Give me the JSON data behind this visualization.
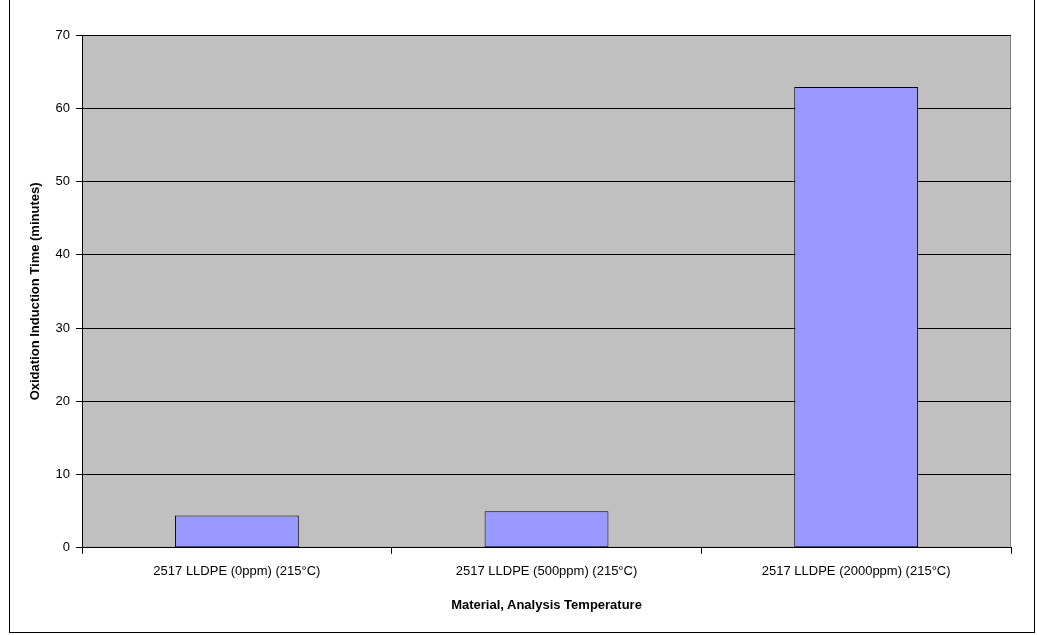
{
  "chart_data": {
    "type": "bar",
    "xlabel": "Material, Analysis Temperature",
    "ylabel": "Oxidation Induction Time (minutes)",
    "categories": [
      "2517 LLDPE (0ppm) (215°C)",
      "2517 LLDPE (500ppm) (215°C)",
      "2517 LLDPE (2000ppm) (215°C)"
    ],
    "values": [
      4.4,
      5.0,
      62.9
    ],
    "color": "#9999ff",
    "ylim": [
      0,
      70
    ],
    "yticks": [
      0,
      10,
      20,
      30,
      40,
      50,
      60,
      70
    ],
    "grid": "y",
    "legend": false
  }
}
